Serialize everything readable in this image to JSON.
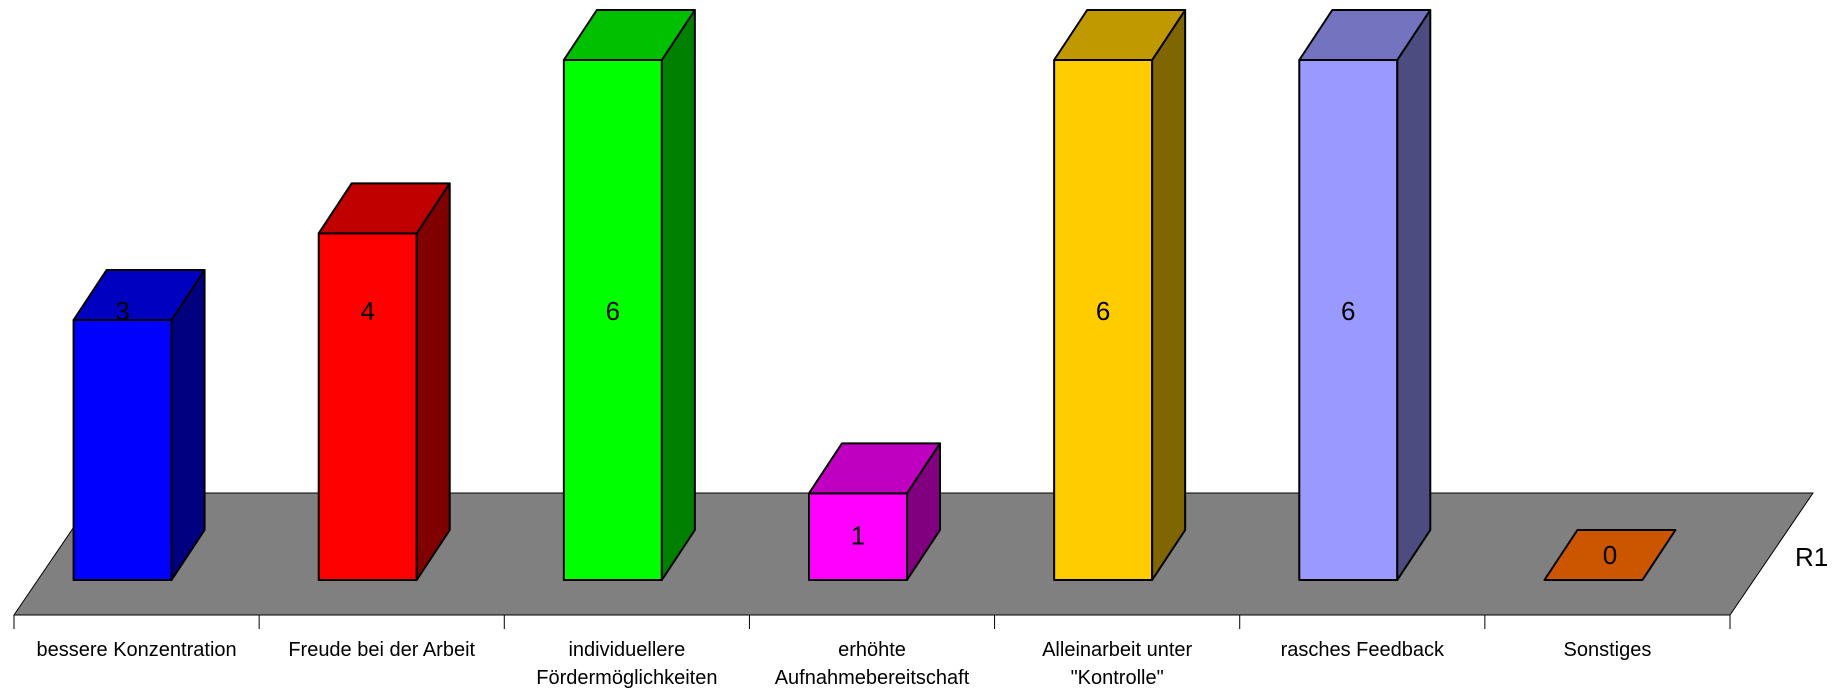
{
  "chart_data": {
    "type": "bar",
    "style": "3d-column",
    "categories": [
      "bessere Konzentration",
      "Freude bei der Arbeit",
      "individuellere Fördermöglichkeiten",
      "erhöhte Aufnahmebereitschaft",
      "Alleinarbeit unter \"Kontrolle\"",
      "rasches Feedback",
      "Sonstiges"
    ],
    "category_lines": [
      [
        "bessere Konzentration"
      ],
      [
        "Freude bei der Arbeit"
      ],
      [
        "individuellere",
        "Fördermöglichkeiten"
      ],
      [
        "erhöhte",
        "Aufnahmebereitschaft"
      ],
      [
        "Alleinarbeit unter",
        "\"Kontrolle\""
      ],
      [
        "rasches Feedback"
      ],
      [
        "Sonstiges"
      ]
    ],
    "series": [
      {
        "name": "R1",
        "values": [
          3,
          4,
          6,
          1,
          6,
          6,
          0
        ]
      }
    ],
    "data_labels": [
      "3",
      "4",
      "6",
      "1",
      "6",
      "6",
      "0"
    ],
    "ylim": [
      0,
      6
    ],
    "grid": false,
    "legend": "none",
    "colors": {
      "floor": "#808080",
      "bar_front": [
        "#0000FF",
        "#FF0000",
        "#00FF00",
        "#FF00FF",
        "#FFCC00",
        "#9999FF",
        "#CC5500"
      ],
      "bar_top": [
        "#0000C0",
        "#C00000",
        "#00C000",
        "#C000C0",
        "#C09900",
        "#7373BF",
        "#C04A00"
      ],
      "bar_side": [
        "#000080",
        "#800000",
        "#008000",
        "#800080",
        "#806600",
        "#4C4C80",
        "#803300"
      ]
    }
  }
}
